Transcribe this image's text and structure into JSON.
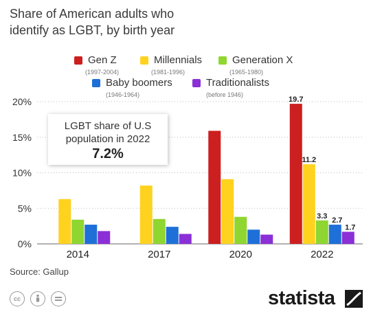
{
  "title_lines": [
    "Share of American adults who",
    "identify as LGBT, by birth year"
  ],
  "chart_data": {
    "type": "bar",
    "categories": [
      "2014",
      "2017",
      "2020",
      "2022"
    ],
    "series": [
      {
        "name": "Gen Z",
        "years": "(1997-2004)",
        "color": "#cc1f1f",
        "values": [
          null,
          null,
          15.9,
          19.7
        ]
      },
      {
        "name": "Millennials",
        "years": "(1981-1996)",
        "color": "#ffd21f",
        "values": [
          6.3,
          8.2,
          9.1,
          11.2
        ]
      },
      {
        "name": "Generation X",
        "years": "(1965-1980)",
        "color": "#8fd631",
        "values": [
          3.4,
          3.5,
          3.8,
          3.3
        ]
      },
      {
        "name": "Baby boomers",
        "years": "(1946-1964)",
        "color": "#1f6fd8",
        "values": [
          2.7,
          2.4,
          2.0,
          2.7
        ]
      },
      {
        "name": "Traditionalists",
        "years": "(before 1946)",
        "color": "#8b2fd6",
        "values": [
          1.8,
          1.4,
          1.3,
          1.7
        ]
      }
    ],
    "data_labels": {
      "category": "2022",
      "labels": [
        "19.7",
        "11.2",
        "3.3",
        "2.7",
        "1.7"
      ]
    },
    "yticks": [
      "0%",
      "5%",
      "10%",
      "15%",
      "20%"
    ],
    "ylim": [
      0,
      20
    ],
    "grid": "horizontal dotted",
    "legend": "top"
  },
  "callout": {
    "line1": "LGBT share of U.S",
    "line2": "population in 2022",
    "value": "7.2%"
  },
  "source": "Source: Gallup",
  "license_icons": [
    "cc-icon",
    "attribution-icon",
    "no-derivatives-icon"
  ],
  "brand": "statista"
}
